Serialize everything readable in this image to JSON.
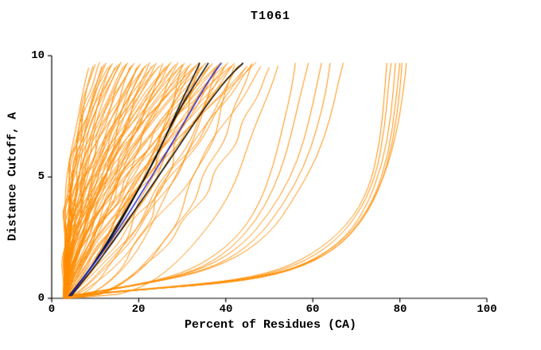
{
  "chart_data": {
    "type": "line",
    "title": "T1061",
    "xlabel": "Percent of Residues (CA)",
    "ylabel": "Distance Cutoff, A",
    "xlim": [
      0,
      100
    ],
    "ylim": [
      0,
      10
    ],
    "x_ticks": [
      "0",
      "20",
      "40",
      "60",
      "80",
      "100"
    ],
    "y_ticks": [
      "0",
      "5",
      "10"
    ],
    "grid": false,
    "legend": "none",
    "colors": {
      "ensemble": "#ff8c00",
      "highlight": "#000000",
      "reference": "#2222cc",
      "axis": "#000000"
    },
    "curve_top_y": 9.7,
    "ensemble_power_curves": [
      [
        2.8,
        8.5,
        2.6,
        0.4
      ],
      [
        3.0,
        9.5,
        2.2,
        0.6
      ],
      [
        3.2,
        10,
        2.9,
        0.5
      ],
      [
        2.6,
        11,
        2.4,
        0.8
      ],
      [
        3.4,
        11.5,
        1.9,
        0.5
      ],
      [
        2.9,
        12,
        2.8,
        0.7
      ],
      [
        3.1,
        12.5,
        2.3,
        0.4
      ],
      [
        3.3,
        13,
        3.1,
        0.6
      ],
      [
        2.7,
        13.5,
        2.0,
        0.9
      ],
      [
        3.0,
        14,
        2.6,
        0.5
      ],
      [
        3.2,
        14.5,
        2.2,
        0.7
      ],
      [
        2.8,
        15,
        2.9,
        0.4
      ],
      [
        3.1,
        15.5,
        1.8,
        0.8
      ],
      [
        3.4,
        16,
        2.5,
        0.6
      ],
      [
        2.9,
        16.5,
        2.1,
        0.5
      ],
      [
        3.0,
        17,
        1.6,
        0.7
      ],
      [
        3.3,
        17.5,
        2.2,
        0.5
      ],
      [
        2.8,
        18,
        1.2,
        0.9
      ],
      [
        3.1,
        18.5,
        1.9,
        0.6
      ],
      [
        3.4,
        19,
        2.4,
        0.4
      ],
      [
        2.9,
        19.5,
        1.0,
        0.8
      ],
      [
        3.2,
        20,
        1.7,
        0.5
      ],
      [
        3.0,
        20.5,
        2.1,
        0.7
      ],
      [
        2.7,
        21,
        1.4,
        0.6
      ],
      [
        3.3,
        21.5,
        1.8,
        0.9
      ],
      [
        3.1,
        22,
        2.3,
        0.5
      ],
      [
        2.8,
        22.5,
        1.1,
        0.7
      ],
      [
        3.4,
        23,
        1.6,
        0.4
      ],
      [
        3.0,
        23.5,
        2.0,
        0.8
      ],
      [
        3.2,
        24,
        1.3,
        0.6
      ],
      [
        2.9,
        24.5,
        1.8,
        0.5
      ],
      [
        3.1,
        25,
        2.2,
        0.7
      ],
      [
        3.3,
        25.5,
        0.9,
        0.6
      ],
      [
        2.8,
        26,
        1.5,
        0.8
      ],
      [
        3.0,
        26.5,
        1.9,
        0.5
      ],
      [
        3.2,
        27,
        1.2,
        0.7
      ],
      [
        2.9,
        27.5,
        1.7,
        0.6
      ],
      [
        3.1,
        28,
        1.4,
        0.8
      ],
      [
        3.3,
        28.5,
        1.9,
        0.5
      ],
      [
        2.8,
        29,
        1.0,
        0.7
      ],
      [
        3.0,
        29.5,
        1.6,
        0.6
      ],
      [
        3.2,
        30,
        2.0,
        0.9
      ],
      [
        2.9,
        30.5,
        1.2,
        0.5
      ],
      [
        3.1,
        31,
        1.7,
        0.7
      ],
      [
        3.4,
        31.5,
        0.8,
        0.6
      ],
      [
        2.8,
        32,
        1.4,
        0.8
      ],
      [
        3.0,
        32.5,
        1.8,
        0.5
      ],
      [
        3.2,
        33,
        1.1,
        0.7
      ],
      [
        2.9,
        33.5,
        1.5,
        0.6
      ],
      [
        3.1,
        34,
        1.9,
        0.8
      ],
      [
        3.3,
        34.5,
        0.9,
        0.5
      ],
      [
        2.8,
        35,
        1.3,
        0.7
      ],
      [
        3.0,
        35.5,
        1.7,
        0.6
      ],
      [
        3.2,
        36,
        1.0,
        0.8
      ],
      [
        2.9,
        36.5,
        1.5,
        0.5
      ],
      [
        3.1,
        37,
        1.2,
        0.7
      ],
      [
        3.3,
        37.5,
        1.6,
        0.6
      ],
      [
        2.8,
        38,
        0.8,
        0.8
      ],
      [
        3.0,
        38.5,
        1.3,
        0.5
      ],
      [
        3.2,
        39,
        1.0,
        0.7
      ],
      [
        2.9,
        39.5,
        1.5,
        0.6
      ],
      [
        3.1,
        40,
        0.7,
        0.8
      ],
      [
        3.3,
        40.5,
        1.2,
        0.5
      ],
      [
        2.8,
        41,
        1.6,
        0.7
      ],
      [
        3.0,
        41.5,
        0.9,
        0.6
      ],
      [
        3.2,
        42,
        1.3,
        0.8
      ],
      [
        2.9,
        42.5,
        0.7,
        0.5
      ],
      [
        3.1,
        43,
        1.1,
        0.7
      ],
      [
        3.3,
        44,
        1.4,
        0.6
      ],
      [
        2.8,
        44.5,
        0.8,
        0.8
      ],
      [
        3.0,
        45,
        1.2,
        0.5
      ],
      [
        3.2,
        46,
        0.9,
        0.7
      ],
      [
        2.9,
        47,
        1.3,
        0.6
      ],
      [
        3.1,
        48,
        0.7,
        0.8
      ],
      [
        3.5,
        30,
        0.5,
        0.6
      ],
      [
        3.8,
        34,
        0.45,
        0.7
      ],
      [
        4.0,
        38,
        0.5,
        0.5
      ],
      [
        3.6,
        42,
        0.4,
        0.8
      ],
      [
        3.9,
        46,
        0.45,
        0.6
      ],
      [
        4.1,
        50,
        0.5,
        0.7
      ],
      [
        3.7,
        52,
        0.35,
        0.6
      ]
    ],
    "ensemble_point_curves": [
      [
        [
          4,
          0.1
        ],
        [
          18,
          0.5
        ],
        [
          30,
          1.0
        ],
        [
          38,
          1.8
        ],
        [
          44,
          2.8
        ],
        [
          48,
          4.0
        ],
        [
          51,
          5.5
        ],
        [
          53,
          7.0
        ],
        [
          55,
          8.5
        ],
        [
          56,
          9.7
        ]
      ],
      [
        [
          4,
          0.1
        ],
        [
          20,
          0.55
        ],
        [
          33,
          1.1
        ],
        [
          41,
          2.0
        ],
        [
          47,
          3.2
        ],
        [
          51,
          4.5
        ],
        [
          54,
          6.0
        ],
        [
          56,
          7.5
        ],
        [
          58,
          9.0
        ],
        [
          59,
          9.7
        ]
      ],
      [
        [
          4.5,
          0.1
        ],
        [
          22,
          0.6
        ],
        [
          35,
          1.2
        ],
        [
          44,
          2.2
        ],
        [
          50,
          3.5
        ],
        [
          55,
          5.0
        ],
        [
          58,
          6.5
        ],
        [
          60,
          8.0
        ],
        [
          62,
          9.7
        ]
      ],
      [
        [
          5,
          0.1
        ],
        [
          24,
          0.65
        ],
        [
          38,
          1.3
        ],
        [
          47,
          2.4
        ],
        [
          53,
          3.8
        ],
        [
          58,
          5.4
        ],
        [
          61,
          7.0
        ],
        [
          63,
          8.5
        ],
        [
          64,
          9.7
        ]
      ],
      [
        [
          5,
          0.12
        ],
        [
          26,
          0.7
        ],
        [
          40,
          1.4
        ],
        [
          50,
          2.6
        ],
        [
          56,
          4.2
        ],
        [
          61,
          5.8
        ],
        [
          64,
          7.4
        ],
        [
          66,
          9.0
        ],
        [
          67,
          9.7
        ]
      ],
      [
        [
          5,
          0.1
        ],
        [
          16,
          0.3
        ],
        [
          34,
          0.55
        ],
        [
          50,
          1.0
        ],
        [
          60,
          1.8
        ],
        [
          68,
          3.0
        ],
        [
          73,
          4.5
        ],
        [
          75.5,
          6.5
        ],
        [
          76.5,
          8.5
        ],
        [
          77,
          9.7
        ]
      ],
      [
        [
          5,
          0.1
        ],
        [
          18,
          0.32
        ],
        [
          38,
          0.6
        ],
        [
          53,
          1.1
        ],
        [
          63,
          2.0
        ],
        [
          70,
          3.3
        ],
        [
          74.5,
          5.0
        ],
        [
          76.5,
          7.0
        ],
        [
          77.5,
          9.0
        ],
        [
          78,
          9.7
        ]
      ],
      [
        [
          5.5,
          0.1
        ],
        [
          20,
          0.35
        ],
        [
          42,
          0.65
        ],
        [
          56,
          1.2
        ],
        [
          66,
          2.2
        ],
        [
          72,
          3.6
        ],
        [
          76,
          5.5
        ],
        [
          78,
          7.5
        ],
        [
          79,
          9.7
        ]
      ],
      [
        [
          5.5,
          0.12
        ],
        [
          22,
          0.38
        ],
        [
          45,
          0.7
        ],
        [
          58,
          1.3
        ],
        [
          68,
          2.5
        ],
        [
          74,
          4.0
        ],
        [
          77.5,
          6.0
        ],
        [
          79,
          8.0
        ],
        [
          80,
          9.7
        ]
      ],
      [
        [
          6,
          0.12
        ],
        [
          24,
          0.4
        ],
        [
          48,
          0.8
        ],
        [
          61,
          1.5
        ],
        [
          70,
          2.8
        ],
        [
          75.5,
          4.5
        ],
        [
          78.5,
          6.5
        ],
        [
          80,
          8.5
        ],
        [
          80.5,
          9.7
        ]
      ],
      [
        [
          6,
          0.15
        ],
        [
          26,
          0.45
        ],
        [
          50,
          0.9
        ],
        [
          63,
          1.7
        ],
        [
          71,
          3.0
        ],
        [
          76.5,
          5.0
        ],
        [
          79.5,
          7.0
        ],
        [
          81,
          8.8
        ],
        [
          81.5,
          9.7
        ]
      ]
    ],
    "highlight_curves": [
      [
        [
          4,
          0.1
        ],
        [
          8,
          1.0
        ],
        [
          12,
          2.0
        ],
        [
          16,
          3.2
        ],
        [
          20,
          4.5
        ],
        [
          24,
          5.8
        ],
        [
          27,
          7.0
        ],
        [
          30,
          8.2
        ],
        [
          33,
          9.3
        ],
        [
          34,
          9.7
        ]
      ],
      [
        [
          4,
          0.1
        ],
        [
          7.5,
          0.9
        ],
        [
          11,
          1.8
        ],
        [
          15,
          3.0
        ],
        [
          19,
          4.2
        ],
        [
          23,
          5.5
        ],
        [
          26.5,
          6.8
        ],
        [
          30,
          8.0
        ],
        [
          33.5,
          9.0
        ],
        [
          36,
          9.7
        ]
      ],
      [
        [
          4.5,
          0.1
        ],
        [
          9,
          1.1
        ],
        [
          14,
          2.3
        ],
        [
          19,
          3.6
        ],
        [
          24,
          4.9
        ],
        [
          29,
          6.2
        ],
        [
          33,
          7.3
        ],
        [
          37,
          8.3
        ],
        [
          41,
          9.2
        ],
        [
          44,
          9.7
        ]
      ]
    ],
    "reference_curve": [
      [
        4.2,
        0.1
      ],
      [
        8,
        1.0
      ],
      [
        12.5,
        2.1
      ],
      [
        17,
        3.3
      ],
      [
        21.5,
        4.6
      ],
      [
        26,
        5.9
      ],
      [
        30,
        7.1
      ],
      [
        33.5,
        8.2
      ],
      [
        36.5,
        9.1
      ],
      [
        39,
        9.7
      ]
    ]
  }
}
